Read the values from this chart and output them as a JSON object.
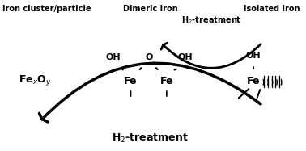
{
  "title_left": "Iron cluster/particle",
  "title_middle": "Dimeric iron",
  "title_right": "Isolated iron",
  "label_fexoy": "Fe$_x$O$_y$",
  "label_h2_top": "H$_2$-treatment",
  "label_h2_bottom": "H$_2$-treatment",
  "label_oh_left": "OH",
  "label_oh_right": "OH",
  "label_o_center": "O",
  "label_fe_left": "Fe",
  "label_fe_right": "Fe",
  "label_fe_iso": "Fe",
  "label_oh_iso": "OH",
  "background_color": "#ffffff",
  "text_color": "#000000"
}
